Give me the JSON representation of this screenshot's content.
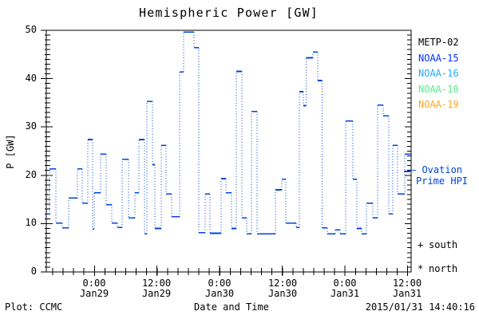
{
  "title": "Hemispheric Power [GW]",
  "y_axis": {
    "label": "P [GW]",
    "tick_labels": [
      "0",
      "10",
      "20",
      "30",
      "40",
      "50"
    ],
    "min": 0,
    "max": 50
  },
  "x_axis": {
    "label": "Date and Time",
    "minor_tick_frac_step": 0.02862,
    "major_ticks": [
      {
        "time": "0:00",
        "date": "Jan29",
        "frac": 0.132
      },
      {
        "time": "12:00",
        "date": "Jan29",
        "frac": 0.303
      },
      {
        "time": "0:00",
        "date": "Jan30",
        "frac": 0.475
      },
      {
        "time": "12:00",
        "date": "Jan30",
        "frac": 0.647
      },
      {
        "time": "0:00",
        "date": "Jan31",
        "frac": 0.818
      },
      {
        "time": "12:00",
        "date": "Jan31",
        "frac": 0.99
      }
    ]
  },
  "legend": {
    "satellites": [
      {
        "label": "METP-02",
        "color": "#000000"
      },
      {
        "label": "NOAA-15",
        "color": "#0033ff"
      },
      {
        "label": "NOAA-16",
        "color": "#22aaff"
      },
      {
        "label": "NOAA-18",
        "color": "#55ee88"
      },
      {
        "label": "NOAA-19",
        "color": "#ffaa22"
      }
    ],
    "model": {
      "line1": "— Ovation",
      "line2": "Prime HPI",
      "color": "#0044dd",
      "axis_value_gw": 20.8
    },
    "hemisphere_markers": [
      {
        "symbol": "+",
        "label": "south"
      },
      {
        "symbol": "*",
        "label": "north"
      }
    ]
  },
  "footer": {
    "left": "Plot: CCMC",
    "timestamp": "2015/01/31 14:40:16"
  },
  "chart_data": {
    "type": "line",
    "style": "step plot: solid horizontal levels joined by dotted vertical connectors",
    "color": "#0044dd",
    "title": "Hemispheric Power [GW]",
    "xlabel": "Date and Time",
    "ylabel": "P [GW]",
    "ylim": [
      0,
      50
    ],
    "x_span": "~15:30 Jan28 to ~12:45 Jan31 (UTC), 2015",
    "x_unit": "fraction of plot width",
    "y_unit": "GW",
    "grid": false,
    "legend_position": "right outside",
    "steps": [
      [
        0.0,
        12.0
      ],
      [
        0.009,
        21.3
      ],
      [
        0.026,
        10.1
      ],
      [
        0.044,
        9.1
      ],
      [
        0.061,
        15.3
      ],
      [
        0.085,
        21.3
      ],
      [
        0.098,
        14.2
      ],
      [
        0.114,
        27.4
      ],
      [
        0.127,
        8.9
      ],
      [
        0.131,
        16.4
      ],
      [
        0.149,
        24.4
      ],
      [
        0.164,
        13.9
      ],
      [
        0.179,
        10.1
      ],
      [
        0.195,
        9.2
      ],
      [
        0.208,
        23.3
      ],
      [
        0.225,
        11.2
      ],
      [
        0.243,
        16.4
      ],
      [
        0.254,
        27.4
      ],
      [
        0.269,
        7.9
      ],
      [
        0.276,
        35.3
      ],
      [
        0.291,
        22.2
      ],
      [
        0.298,
        9.0
      ],
      [
        0.315,
        26.2
      ],
      [
        0.328,
        16.1
      ],
      [
        0.344,
        11.4
      ],
      [
        0.365,
        41.4
      ],
      [
        0.376,
        49.6
      ],
      [
        0.405,
        46.4
      ],
      [
        0.418,
        8.1
      ],
      [
        0.435,
        16.1
      ],
      [
        0.449,
        8.0
      ],
      [
        0.479,
        19.3
      ],
      [
        0.492,
        16.4
      ],
      [
        0.508,
        9.0
      ],
      [
        0.521,
        41.5
      ],
      [
        0.536,
        11.2
      ],
      [
        0.549,
        7.9
      ],
      [
        0.562,
        33.2
      ],
      [
        0.578,
        7.9
      ],
      [
        0.628,
        17.0
      ],
      [
        0.646,
        19.2
      ],
      [
        0.657,
        10.1
      ],
      [
        0.685,
        9.2
      ],
      [
        0.694,
        37.3
      ],
      [
        0.705,
        34.4
      ],
      [
        0.712,
        44.3
      ],
      [
        0.731,
        45.5
      ],
      [
        0.744,
        39.6
      ],
      [
        0.756,
        9.1
      ],
      [
        0.77,
        7.9
      ],
      [
        0.792,
        8.7
      ],
      [
        0.805,
        7.9
      ],
      [
        0.821,
        31.2
      ],
      [
        0.84,
        19.2
      ],
      [
        0.851,
        9.0
      ],
      [
        0.864,
        7.9
      ],
      [
        0.878,
        14.2
      ],
      [
        0.895,
        11.2
      ],
      [
        0.908,
        34.5
      ],
      [
        0.923,
        32.3
      ],
      [
        0.939,
        12.0
      ],
      [
        0.95,
        26.2
      ],
      [
        0.963,
        16.1
      ],
      [
        0.982,
        24.4
      ]
    ]
  }
}
